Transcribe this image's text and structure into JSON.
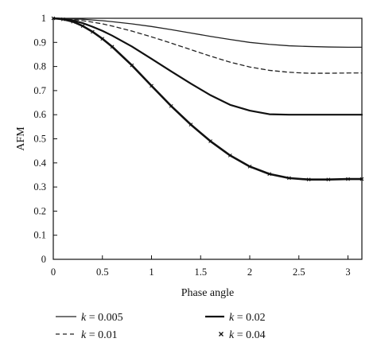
{
  "chart_data": {
    "type": "line",
    "title": "",
    "xlabel": "Phase angle",
    "ylabel": "AFM",
    "xlim": [
      0,
      3.14159
    ],
    "ylim": [
      0,
      1
    ],
    "xticks": [
      "0",
      "0.5",
      "1",
      "1.5",
      "2",
      "2.5",
      "3"
    ],
    "yticks": [
      "0",
      "0.1",
      "0.2",
      "0.3",
      "0.4",
      "0.5",
      "0.6",
      "0.7",
      "0.8",
      "0.9",
      "1"
    ],
    "grid": false,
    "legend_position": "bottom",
    "x": [
      0,
      0.1,
      0.2,
      0.3,
      0.4,
      0.5,
      0.6,
      0.8,
      1.0,
      1.2,
      1.4,
      1.6,
      1.8,
      2.0,
      2.2,
      2.4,
      2.6,
      2.8,
      3.0,
      3.14159
    ],
    "series": [
      {
        "name": "k = 0.005",
        "style": "solid-thin",
        "values": [
          1.0,
          0.999,
          0.998,
          0.996,
          0.993,
          0.99,
          0.986,
          0.977,
          0.966,
          0.953,
          0.939,
          0.925,
          0.912,
          0.9,
          0.892,
          0.886,
          0.883,
          0.881,
          0.88,
          0.88
        ]
      },
      {
        "name": "k = 0.01",
        "style": "dashed",
        "values": [
          1.0,
          0.998,
          0.995,
          0.99,
          0.984,
          0.977,
          0.968,
          0.947,
          0.923,
          0.897,
          0.87,
          0.843,
          0.818,
          0.798,
          0.784,
          0.776,
          0.772,
          0.772,
          0.773,
          0.773
        ]
      },
      {
        "name": "k = 0.02",
        "style": "solid-medium",
        "values": [
          1.0,
          0.998,
          0.991,
          0.98,
          0.965,
          0.948,
          0.928,
          0.883,
          0.832,
          0.78,
          0.729,
          0.681,
          0.641,
          0.617,
          0.602,
          0.6,
          0.6,
          0.6,
          0.6,
          0.6
        ]
      },
      {
        "name": "k = 0.04",
        "style": "cross-marker",
        "values": [
          1.0,
          0.996,
          0.986,
          0.968,
          0.944,
          0.915,
          0.882,
          0.805,
          0.72,
          0.636,
          0.559,
          0.49,
          0.431,
          0.385,
          0.354,
          0.337,
          0.331,
          0.331,
          0.333,
          0.333
        ]
      }
    ],
    "legend": [
      {
        "label": "k = 0.005",
        "style": "solid-thin"
      },
      {
        "label": "k = 0.01",
        "style": "dashed"
      },
      {
        "label": "k = 0.02",
        "style": "solid-medium"
      },
      {
        "label": "k = 0.04",
        "style": "cross-marker"
      }
    ]
  }
}
